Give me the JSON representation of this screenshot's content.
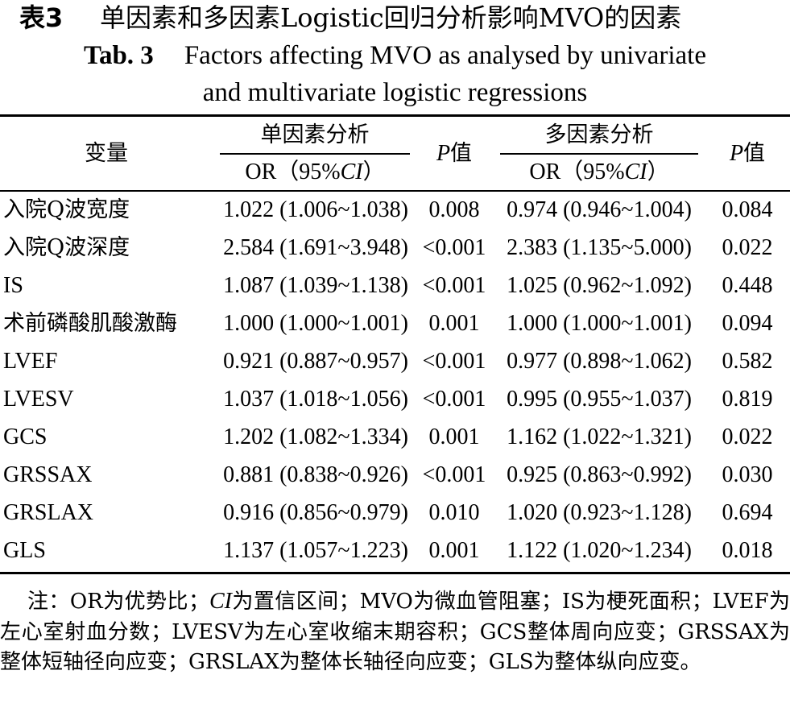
{
  "caption": {
    "cn_label": "表3",
    "cn_title": "单因素和多因素Logistic回归分析影响MVO的因素",
    "en_label": "Tab. 3",
    "en_title_line1": "Factors affecting MVO as analysed by univariate",
    "en_title_line2": "and multivariate logistic regressions"
  },
  "table": {
    "header": {
      "variable": "变量",
      "univariate": "单因素分析",
      "multivariate": "多因素分析",
      "or_prefix": "OR（95%",
      "ci": "CI",
      "or_suffix": "）",
      "p_italic": "P",
      "p_suffix": "值"
    },
    "rows": [
      {
        "variable": "入院Q波宽度",
        "uni_or": "1.022 (1.006~1.038)",
        "uni_p": "0.008",
        "multi_or": "0.974 (0.946~1.004)",
        "multi_p": "0.084"
      },
      {
        "variable": "入院Q波深度",
        "uni_or": "2.584 (1.691~3.948)",
        "uni_p": "<0.001",
        "multi_or": "2.383 (1.135~5.000)",
        "multi_p": "0.022"
      },
      {
        "variable": "IS",
        "uni_or": "1.087 (1.039~1.138)",
        "uni_p": "<0.001",
        "multi_or": "1.025 (0.962~1.092)",
        "multi_p": "0.448"
      },
      {
        "variable": "术前磷酸肌酸激酶",
        "uni_or": "1.000 (1.000~1.001)",
        "uni_p": "0.001",
        "multi_or": "1.000 (1.000~1.001)",
        "multi_p": "0.094"
      },
      {
        "variable": "LVEF",
        "uni_or": "0.921 (0.887~0.957)",
        "uni_p": "<0.001",
        "multi_or": "0.977 (0.898~1.062)",
        "multi_p": "0.582"
      },
      {
        "variable": "LVESV",
        "uni_or": "1.037 (1.018~1.056)",
        "uni_p": "<0.001",
        "multi_or": "0.995 (0.955~1.037)",
        "multi_p": "0.819"
      },
      {
        "variable": "GCS",
        "uni_or": "1.202 (1.082~1.334)",
        "uni_p": "0.001",
        "multi_or": "1.162 (1.022~1.321)",
        "multi_p": "0.022"
      },
      {
        "variable": "GRSSAX",
        "uni_or": "0.881 (0.838~0.926)",
        "uni_p": "<0.001",
        "multi_or": "0.925 (0.863~0.992)",
        "multi_p": "0.030"
      },
      {
        "variable": "GRSLAX",
        "uni_or": "0.916 (0.856~0.979)",
        "uni_p": "0.010",
        "multi_or": "1.020 (0.923~1.128)",
        "multi_p": "0.694"
      },
      {
        "variable": "GLS",
        "uni_or": "1.137 (1.057~1.223)",
        "uni_p": "0.001",
        "multi_or": "1.122 (1.020~1.234)",
        "multi_p": "0.018"
      }
    ]
  },
  "note": {
    "prefix": "注：OR为优势比；",
    "ci": "CI",
    "rest": "为置信区间；MVO为微血管阻塞；IS为梗死面积；LVEF为左心室射血分数；LVESV为左心室收缩末期容积；GCS整体周向应变；GRSSAX为整体短轴径向应变；GRSLAX为整体长轴径向应变；GLS为整体纵向应变。"
  }
}
